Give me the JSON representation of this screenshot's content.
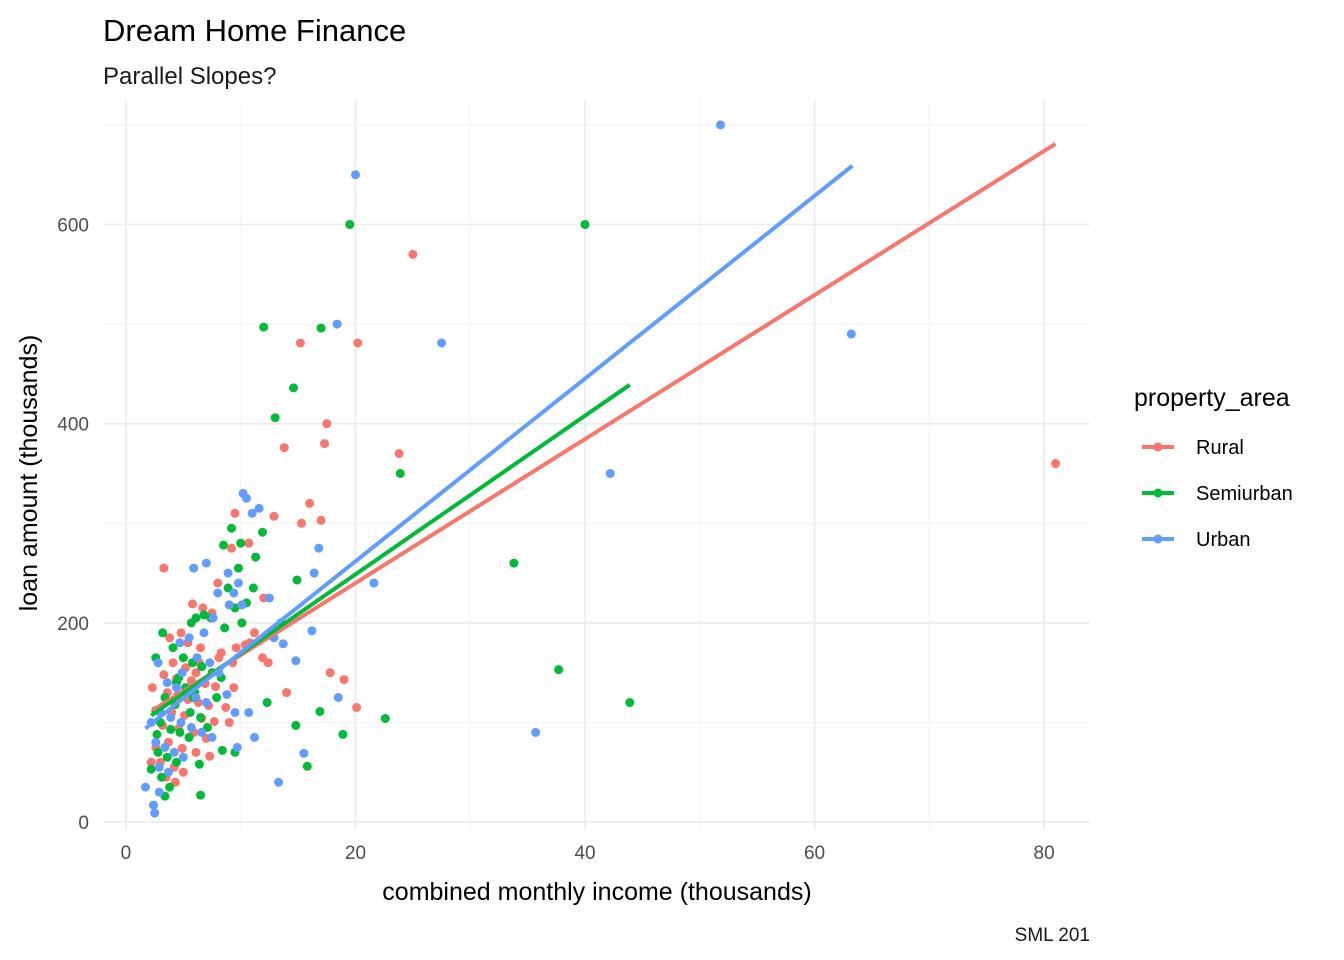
{
  "chart_data": {
    "type": "scatter",
    "title": "Dream Home Finance",
    "subtitle": "Parallel Slopes?",
    "xlabel": "combined monthly income (thousands)",
    "ylabel": "loan amount (thousands)",
    "caption": "SML 201",
    "xlim": [
      -2,
      84
    ],
    "ylim": [
      -8,
      725
    ],
    "x_ticks": [
      0,
      20,
      40,
      60,
      80
    ],
    "y_ticks": [
      0,
      200,
      400,
      600
    ],
    "grid": true,
    "legend": {
      "title": "property_area",
      "position": "right"
    },
    "series": [
      {
        "name": "Rural",
        "color": "#F8766D",
        "points": [
          [
            25,
            570
          ],
          [
            20.2,
            481
          ],
          [
            15.2,
            481
          ],
          [
            17.5,
            400
          ],
          [
            17.3,
            380
          ],
          [
            23.8,
            370
          ],
          [
            13.8,
            376
          ],
          [
            81,
            360
          ],
          [
            16,
            320
          ],
          [
            17,
            303
          ],
          [
            15.3,
            300
          ],
          [
            12.9,
            307
          ],
          [
            12,
            225
          ],
          [
            9.5,
            310
          ],
          [
            9.2,
            275
          ],
          [
            10.7,
            280
          ],
          [
            8,
            240
          ],
          [
            11.9,
            165
          ],
          [
            17.8,
            150
          ],
          [
            19,
            143
          ],
          [
            14,
            130
          ],
          [
            20.1,
            115
          ],
          [
            2.3,
            135
          ],
          [
            3.3,
            255
          ],
          [
            5.8,
            219
          ],
          [
            6.7,
            215
          ],
          [
            7.5,
            210
          ],
          [
            4.8,
            190
          ],
          [
            5.4,
            180
          ],
          [
            6.5,
            175
          ],
          [
            8.3,
            170
          ],
          [
            9.6,
            175
          ],
          [
            10.4,
            178
          ],
          [
            4.1,
            160
          ],
          [
            5.2,
            155
          ],
          [
            6.1,
            150
          ],
          [
            3.3,
            148
          ],
          [
            4.4,
            144
          ],
          [
            5.7,
            142
          ],
          [
            6.9,
            139
          ],
          [
            7.8,
            136
          ],
          [
            9.4,
            135
          ],
          [
            3.6,
            130
          ],
          [
            4.5,
            127
          ],
          [
            5.4,
            123
          ],
          [
            6.3,
            120
          ],
          [
            7.2,
            117
          ],
          [
            8.7,
            115
          ],
          [
            4.0,
            110
          ],
          [
            5.1,
            107
          ],
          [
            6.6,
            104
          ],
          [
            7.7,
            101
          ],
          [
            3.2,
            97
          ],
          [
            4.6,
            94
          ],
          [
            5.9,
            90
          ],
          [
            7.0,
            84
          ],
          [
            3.7,
            80
          ],
          [
            4.9,
            74
          ],
          [
            6.1,
            70
          ],
          [
            7.3,
            66
          ],
          [
            3.0,
            60
          ],
          [
            4.2,
            55
          ],
          [
            5.0,
            50
          ],
          [
            3.5,
            45
          ],
          [
            4.3,
            40
          ],
          [
            2.6,
            75
          ],
          [
            8.1,
            165
          ],
          [
            9.0,
            100
          ],
          [
            10.8,
            180
          ],
          [
            11.2,
            190
          ],
          [
            12.4,
            160
          ],
          [
            2.2,
            60
          ],
          [
            3.8,
            185
          ],
          [
            6.4,
            160
          ],
          [
            9.3,
            160
          ]
        ]
      },
      {
        "name": "Semiurban",
        "color": "#00BA38",
        "points": [
          [
            19.5,
            600
          ],
          [
            40,
            600
          ],
          [
            12,
            497
          ],
          [
            17,
            496
          ],
          [
            14.6,
            436
          ],
          [
            13,
            406
          ],
          [
            23.9,
            350
          ],
          [
            33.8,
            260
          ],
          [
            37.7,
            153
          ],
          [
            43.9,
            120
          ],
          [
            22.6,
            104
          ],
          [
            18.9,
            88
          ],
          [
            16.9,
            111
          ],
          [
            14.8,
            97
          ],
          [
            15.8,
            56
          ],
          [
            11.9,
            291
          ],
          [
            11.3,
            266
          ],
          [
            9.2,
            295
          ],
          [
            10.0,
            280
          ],
          [
            8.5,
            278
          ],
          [
            9.8,
            255
          ],
          [
            10.5,
            220
          ],
          [
            8.9,
            235
          ],
          [
            11.1,
            235
          ],
          [
            6.8,
            208
          ],
          [
            6.1,
            205
          ],
          [
            5.7,
            200
          ],
          [
            7.4,
            205
          ],
          [
            8.6,
            195
          ],
          [
            9.5,
            215
          ],
          [
            10.1,
            200
          ],
          [
            3.2,
            190
          ],
          [
            4.1,
            175
          ],
          [
            5.0,
            165
          ],
          [
            5.8,
            160
          ],
          [
            6.6,
            156
          ],
          [
            7.5,
            150
          ],
          [
            8.3,
            145
          ],
          [
            4.4,
            140
          ],
          [
            5.2,
            135
          ],
          [
            6.0,
            130
          ],
          [
            2.6,
            112
          ],
          [
            3.4,
            125
          ],
          [
            4.3,
            118
          ],
          [
            5.6,
            110
          ],
          [
            6.5,
            105
          ],
          [
            7.1,
            95
          ],
          [
            3.0,
            100
          ],
          [
            3.9,
            93
          ],
          [
            4.7,
            90
          ],
          [
            5.5,
            85
          ],
          [
            2.8,
            70
          ],
          [
            3.6,
            65
          ],
          [
            4.4,
            60
          ],
          [
            3.1,
            45
          ],
          [
            3.8,
            35
          ],
          [
            6.5,
            27
          ],
          [
            3.4,
            26
          ],
          [
            8.4,
            72
          ],
          [
            9.5,
            70
          ],
          [
            6.4,
            58
          ],
          [
            5.9,
            125
          ],
          [
            4.6,
            145
          ],
          [
            7.9,
            125
          ],
          [
            2.2,
            53
          ],
          [
            2.7,
            88
          ],
          [
            2.6,
            165
          ],
          [
            13.5,
            200
          ],
          [
            12.3,
            120
          ],
          [
            14.9,
            243
          ]
        ]
      },
      {
        "name": "Urban",
        "color": "#619CFF",
        "points": [
          [
            51.8,
            700
          ],
          [
            20,
            650
          ],
          [
            63.2,
            490
          ],
          [
            27.5,
            481
          ],
          [
            18.4,
            500
          ],
          [
            42.2,
            350
          ],
          [
            21.6,
            240
          ],
          [
            35.7,
            90
          ],
          [
            15.5,
            69
          ],
          [
            13.3,
            40
          ],
          [
            18.5,
            125
          ],
          [
            10.2,
            330
          ],
          [
            10.5,
            325
          ],
          [
            11.6,
            315
          ],
          [
            11,
            310
          ],
          [
            16.8,
            275
          ],
          [
            16.4,
            250
          ],
          [
            9.8,
            240
          ],
          [
            8.9,
            250
          ],
          [
            9.4,
            230
          ],
          [
            12.5,
            225
          ],
          [
            5.9,
            255
          ],
          [
            7.0,
            260
          ],
          [
            8.0,
            230
          ],
          [
            9.0,
            218
          ],
          [
            10.1,
            218
          ],
          [
            7.6,
            205
          ],
          [
            6.8,
            190
          ],
          [
            5.5,
            185
          ],
          [
            4.7,
            180
          ],
          [
            4.9,
            150
          ],
          [
            6.2,
            165
          ],
          [
            7.3,
            160
          ],
          [
            8.1,
            150
          ],
          [
            2.8,
            160
          ],
          [
            3.6,
            140
          ],
          [
            4.4,
            135
          ],
          [
            5.3,
            130
          ],
          [
            6.1,
            125
          ],
          [
            7.0,
            120
          ],
          [
            2.2,
            100
          ],
          [
            3.0,
            110
          ],
          [
            3.9,
            105
          ],
          [
            4.8,
            100
          ],
          [
            5.7,
            95
          ],
          [
            6.6,
            90
          ],
          [
            7.5,
            85
          ],
          [
            2.6,
            80
          ],
          [
            3.4,
            75
          ],
          [
            4.2,
            70
          ],
          [
            5.0,
            65
          ],
          [
            2.9,
            55
          ],
          [
            3.7,
            50
          ],
          [
            1.7,
            35
          ],
          [
            2.4,
            17
          ],
          [
            2.5,
            9
          ],
          [
            2.9,
            30
          ],
          [
            14.8,
            162
          ],
          [
            13.7,
            179
          ],
          [
            16.2,
            192
          ],
          [
            11.2,
            85
          ],
          [
            9.5,
            110
          ],
          [
            9.7,
            75
          ],
          [
            10.7,
            110
          ],
          [
            12.9,
            185
          ],
          [
            8.8,
            128
          ]
        ]
      }
    ],
    "trend_lines": [
      {
        "name": "Rural",
        "from": [
          2.3,
          112
        ],
        "to": [
          81,
          681
        ]
      },
      {
        "name": "Semiurban",
        "from": [
          2.2,
          107
        ],
        "to": [
          43.9,
          439
        ]
      },
      {
        "name": "Urban",
        "from": [
          1.7,
          94
        ],
        "to": [
          63.3,
          659
        ]
      }
    ]
  }
}
